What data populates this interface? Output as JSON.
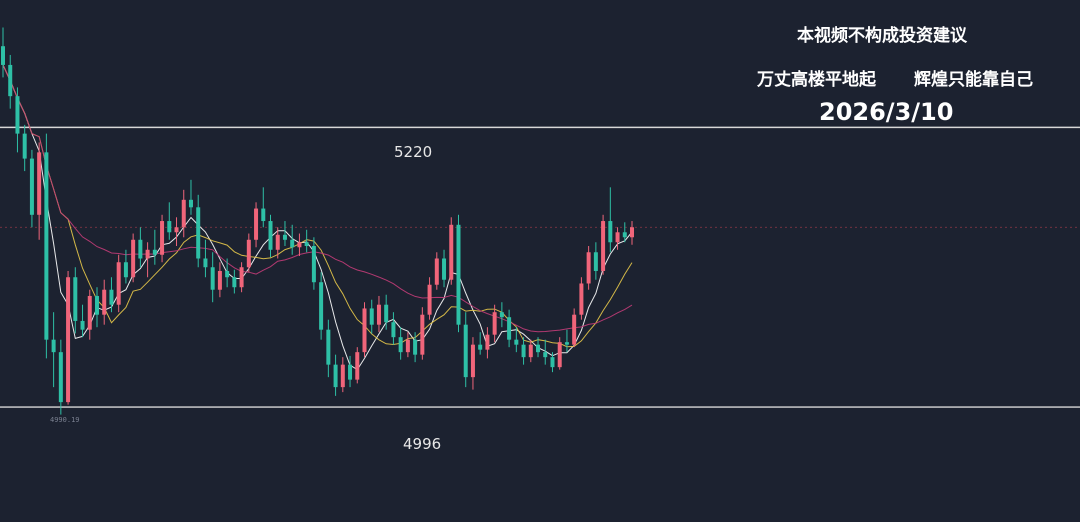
{
  "captions": {
    "disclaimer": "本视频不构成投资建议",
    "motto_a": "万丈高楼平地起",
    "motto_b": "辉煌只能靠自己",
    "date": "2026/3/10"
  },
  "chart_data": {
    "type": "candlestick",
    "levels": [
      {
        "name": "upper",
        "label": "5220",
        "value": 5220
      },
      {
        "name": "lower",
        "label": "4996",
        "value": 4996
      }
    ],
    "low_marker": "4990.19",
    "low_value": 4990.19,
    "ylim": [
      4904,
      5322
    ],
    "grid": false,
    "colors": {
      "background": "#1c2230",
      "up": "#f0657a",
      "down": "#2ec0a6",
      "ma_fast": "#ffffff",
      "ma_mid": "#e8c94a",
      "ma_slow": "#c23c78",
      "level_line": "#d8d8d8",
      "last_price_line": "#c04050"
    },
    "ohlc": [
      [
        5285,
        5300,
        5260,
        5270
      ],
      [
        5270,
        5278,
        5235,
        5245
      ],
      [
        5245,
        5252,
        5200,
        5215
      ],
      [
        5215,
        5222,
        5185,
        5195
      ],
      [
        5195,
        5202,
        5140,
        5150
      ],
      [
        5150,
        5208,
        5130,
        5200
      ],
      [
        5200,
        5215,
        5035,
        5050
      ],
      [
        5050,
        5072,
        5012,
        5040
      ],
      [
        5040,
        5050,
        4990,
        5000
      ],
      [
        5000,
        5105,
        4998,
        5100
      ],
      [
        5100,
        5108,
        5055,
        5065
      ],
      [
        5065,
        5078,
        5052,
        5058
      ],
      [
        5058,
        5090,
        5050,
        5085
      ],
      [
        5085,
        5092,
        5060,
        5070
      ],
      [
        5070,
        5098,
        5062,
        5090
      ],
      [
        5090,
        5100,
        5072,
        5078
      ],
      [
        5078,
        5118,
        5072,
        5112
      ],
      [
        5112,
        5122,
        5095,
        5100
      ],
      [
        5100,
        5135,
        5096,
        5130
      ],
      [
        5130,
        5140,
        5108,
        5115
      ],
      [
        5115,
        5128,
        5100,
        5122
      ],
      [
        5122,
        5138,
        5110,
        5118
      ],
      [
        5118,
        5150,
        5112,
        5145
      ],
      [
        5145,
        5160,
        5130,
        5136
      ],
      [
        5136,
        5148,
        5125,
        5140
      ],
      [
        5140,
        5170,
        5132,
        5162
      ],
      [
        5162,
        5178,
        5150,
        5156
      ],
      [
        5156,
        5166,
        5108,
        5115
      ],
      [
        5115,
        5130,
        5100,
        5108
      ],
      [
        5108,
        5120,
        5080,
        5090
      ],
      [
        5090,
        5112,
        5084,
        5105
      ],
      [
        5105,
        5115,
        5092,
        5100
      ],
      [
        5100,
        5106,
        5087,
        5092
      ],
      [
        5092,
        5112,
        5088,
        5108
      ],
      [
        5108,
        5135,
        5104,
        5130
      ],
      [
        5130,
        5160,
        5124,
        5155
      ],
      [
        5155,
        5172,
        5140,
        5145
      ],
      [
        5145,
        5150,
        5116,
        5122
      ],
      [
        5122,
        5140,
        5115,
        5134
      ],
      [
        5134,
        5145,
        5125,
        5130
      ],
      [
        5130,
        5142,
        5118,
        5124
      ],
      [
        5124,
        5135,
        5117,
        5128
      ],
      [
        5128,
        5138,
        5120,
        5125
      ],
      [
        5125,
        5132,
        5090,
        5096
      ],
      [
        5096,
        5104,
        5050,
        5058
      ],
      [
        5058,
        5066,
        5020,
        5030
      ],
      [
        5030,
        5038,
        5005,
        5012
      ],
      [
        5012,
        5036,
        5008,
        5030
      ],
      [
        5030,
        5037,
        5012,
        5018
      ],
      [
        5018,
        5044,
        5015,
        5040
      ],
      [
        5040,
        5080,
        5036,
        5075
      ],
      [
        5075,
        5082,
        5055,
        5062
      ],
      [
        5062,
        5085,
        5056,
        5078
      ],
      [
        5078,
        5086,
        5058,
        5064
      ],
      [
        5064,
        5072,
        5046,
        5052
      ],
      [
        5052,
        5060,
        5034,
        5040
      ],
      [
        5040,
        5056,
        5036,
        5050
      ],
      [
        5050,
        5056,
        5032,
        5038
      ],
      [
        5038,
        5076,
        5034,
        5070
      ],
      [
        5070,
        5100,
        5066,
        5094
      ],
      [
        5094,
        5120,
        5090,
        5115
      ],
      [
        5115,
        5122,
        5092,
        5098
      ],
      [
        5098,
        5148,
        5094,
        5142
      ],
      [
        5142,
        5150,
        5056,
        5062
      ],
      [
        5062,
        5072,
        5012,
        5020
      ],
      [
        5020,
        5052,
        5010,
        5046
      ],
      [
        5046,
        5056,
        5038,
        5042
      ],
      [
        5042,
        5060,
        5035,
        5054
      ],
      [
        5054,
        5078,
        5048,
        5072
      ],
      [
        5072,
        5080,
        5060,
        5068
      ],
      [
        5068,
        5074,
        5044,
        5050
      ],
      [
        5050,
        5060,
        5040,
        5046
      ],
      [
        5046,
        5052,
        5030,
        5036
      ],
      [
        5036,
        5050,
        5032,
        5046
      ],
      [
        5046,
        5052,
        5036,
        5040
      ],
      [
        5040,
        5050,
        5030,
        5036
      ],
      [
        5036,
        5040,
        5024,
        5028
      ],
      [
        5028,
        5052,
        5026,
        5048
      ],
      [
        5048,
        5058,
        5040,
        5046
      ],
      [
        5046,
        5075,
        5044,
        5070
      ],
      [
        5070,
        5100,
        5066,
        5095
      ],
      [
        5095,
        5125,
        5090,
        5120
      ],
      [
        5120,
        5128,
        5098,
        5105
      ],
      [
        5105,
        5150,
        5102,
        5145
      ],
      [
        5145,
        5172,
        5120,
        5128
      ],
      [
        5128,
        5140,
        5122,
        5136
      ],
      [
        5136,
        5144,
        5128,
        5132
      ],
      [
        5132,
        5145,
        5126,
        5140
      ]
    ]
  }
}
